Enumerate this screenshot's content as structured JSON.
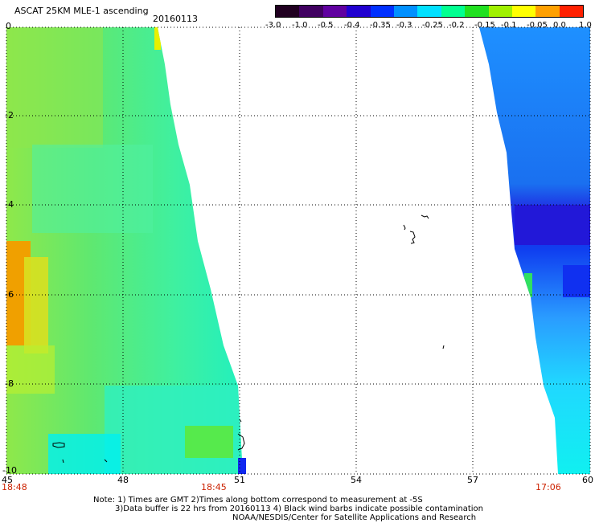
{
  "header": {
    "title": "ASCAT 25KM MLE-1 ascending",
    "date": "20160113"
  },
  "colorbar": {
    "labels": [
      "-3.0",
      "-1.0",
      "-0.5",
      "-0.4",
      "-0.35",
      "-0.3",
      "-0.25",
      "-0.2",
      "-0.15",
      "-0.1",
      "-0.05",
      "0.0",
      "1.0"
    ],
    "colors": [
      "#200020",
      "#400060",
      "#6000a0",
      "#2000d0",
      "#0030ff",
      "#0090ff",
      "#00e0ff",
      "#00ff90",
      "#20e020",
      "#a0f000",
      "#ffff00",
      "#ffa000",
      "#ff2000"
    ]
  },
  "axes": {
    "lat_labels": [
      "0",
      "-2",
      "-4",
      "-6",
      "-8",
      "-10"
    ],
    "lon_labels": [
      "45",
      "48",
      "51",
      "54",
      "57",
      "60"
    ]
  },
  "pass_times": {
    "left": "18:48",
    "middle": "18:45",
    "right": "17:06"
  },
  "notes": {
    "line1": "Note: 1) Times are GMT 2)Times along bottom correspond to measurement at -5S",
    "line2": "3)Data buffer is 22 hrs from 20160113 4) Black wind barbs indicate possible contamination",
    "line3": "NOAA/NESDIS/Center for Satellite Applications and Research"
  }
}
